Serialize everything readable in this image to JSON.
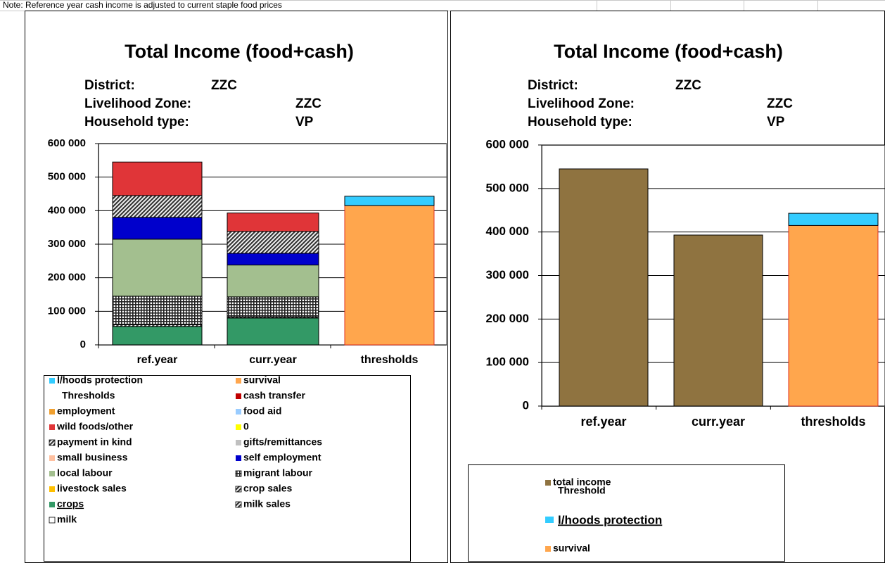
{
  "note": "Note: Reference year cash income is adjusted to current staple food prices",
  "chart_data": [
    {
      "type": "stacked_bar",
      "title": "Total Income (food+cash)",
      "header": [
        {
          "label": "District:",
          "value": "ZZC"
        },
        {
          "label": "Livelihood Zone:",
          "value": "ZZC"
        },
        {
          "label": "Household type:",
          "value": "VP"
        }
      ],
      "categories": [
        "ref.year",
        "curr.year",
        "thresholds"
      ],
      "ylim": [
        0,
        600000
      ],
      "yticks": [
        0,
        {
          "value": 100000,
          "label": "100 000"
        },
        {
          "value": 200000,
          "label": "200 000"
        },
        {
          "value": 300000,
          "label": "300 000"
        },
        {
          "value": 400000,
          "label": "400 000"
        },
        {
          "value": 500000,
          "label": "500 000"
        },
        {
          "value": 600000,
          "label": "600 000"
        }
      ],
      "grid": true,
      "series": [
        {
          "name": "l/hoods protection",
          "color": "#33ccff",
          "values": [
            0,
            0,
            28000
          ]
        },
        {
          "name": "survival",
          "color": "#ffa64d",
          "values": [
            0,
            0,
            415000
          ]
        },
        {
          "name": "Thresholds",
          "color": "none",
          "values": [
            0,
            0,
            0
          ]
        },
        {
          "name": "cash transfer",
          "color": "#c00000",
          "values": [
            0,
            0,
            0
          ]
        },
        {
          "name": "employment",
          "color": "#f0a030",
          "values": [
            0,
            0,
            0
          ]
        },
        {
          "name": "food aid",
          "color": "#99ccff",
          "values": [
            0,
            0,
            0
          ]
        },
        {
          "name": "wild foods/other",
          "color": "#e03538",
          "values": [
            100000,
            55000,
            0
          ]
        },
        {
          "name": "0",
          "color": "#ffff00",
          "values": [
            0,
            0,
            0
          ]
        },
        {
          "name": "payment in kind",
          "color": "#333333",
          "pattern": "hatch",
          "values": [
            65000,
            65000,
            0
          ]
        },
        {
          "name": "gifts/remittances",
          "color": "#c0c0c0",
          "values": [
            0,
            0,
            0
          ]
        },
        {
          "name": "small business",
          "color": "#ffc0a0",
          "values": [
            0,
            0,
            0
          ]
        },
        {
          "name": "self employment",
          "color": "#0000cc",
          "values": [
            65000,
            35000,
            0
          ]
        },
        {
          "name": "local labour",
          "color": "#a3bf8f",
          "values": [
            170000,
            95000,
            0
          ]
        },
        {
          "name": "migrant labour",
          "color": "#222222",
          "pattern": "grid",
          "values": [
            85000,
            60000,
            0
          ]
        },
        {
          "name": "livestock sales",
          "color": "#ffc000",
          "values": [
            0,
            0,
            0
          ]
        },
        {
          "name": "crop sales",
          "color": "#333333",
          "pattern": "hatch",
          "values": [
            5000,
            3000,
            0
          ]
        },
        {
          "name": "crops",
          "color": "#339966",
          "values": [
            55000,
            80000,
            0
          ]
        },
        {
          "name": "milk sales",
          "color": "#333333",
          "pattern": "hatch",
          "values": [
            0,
            0,
            0
          ]
        },
        {
          "name": "milk",
          "color": "#ffffff",
          "values": [
            0,
            0,
            0
          ]
        }
      ]
    },
    {
      "type": "stacked_bar",
      "title": "Total Income (food+cash)",
      "header": [
        {
          "label": "District:",
          "value": "ZZC"
        },
        {
          "label": "Livelihood Zone:",
          "value": "ZZC"
        },
        {
          "label": "Household type:",
          "value": "VP"
        }
      ],
      "categories": [
        "ref.year",
        "curr.year",
        "thresholds"
      ],
      "ylim": [
        0,
        600000
      ],
      "yticks": [
        0,
        {
          "value": 100000,
          "label": "100 000"
        },
        {
          "value": 200000,
          "label": "200 000"
        },
        {
          "value": 300000,
          "label": "300 000"
        },
        {
          "value": 400000,
          "label": "400 000"
        },
        {
          "value": 500000,
          "label": "500 000"
        },
        {
          "value": 600000,
          "label": "600 000"
        }
      ],
      "grid": true,
      "series": [
        {
          "name": "total income",
          "color": "#8f7340",
          "values": [
            545000,
            393000,
            null
          ]
        },
        {
          "name": "Threshold",
          "color": "none",
          "values": [
            0,
            0,
            0
          ]
        },
        {
          "name": "l/hoods protection",
          "color": "#33ccff",
          "values": [
            0,
            0,
            28000
          ]
        },
        {
          "name": "survival",
          "color": "#ffa64d",
          "values": [
            0,
            0,
            415000
          ]
        }
      ]
    }
  ]
}
